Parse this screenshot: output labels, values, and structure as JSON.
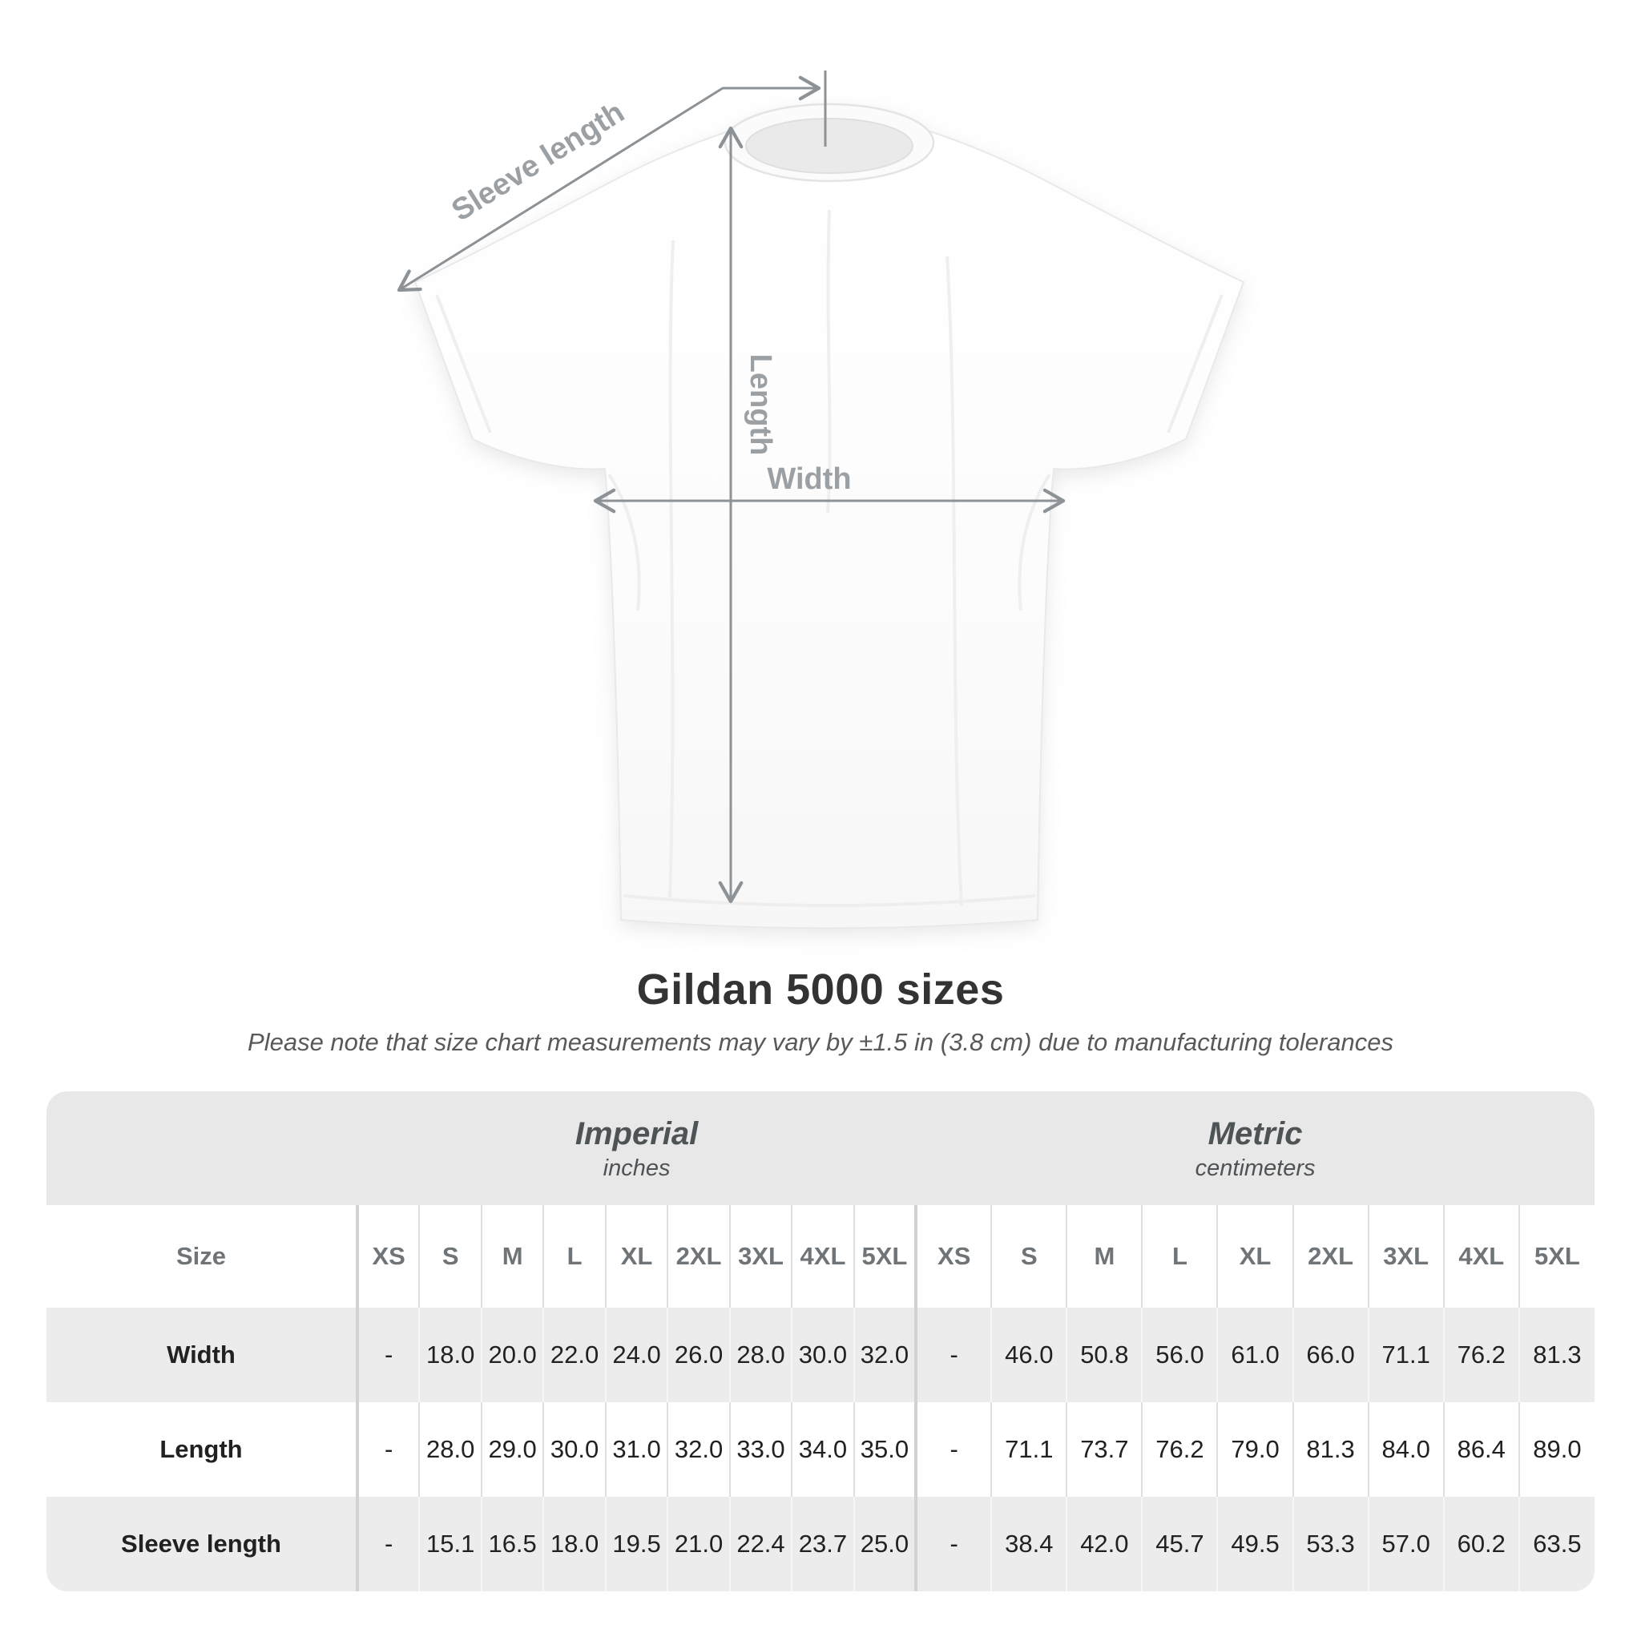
{
  "page": {
    "title": "Gildan 5000 sizes",
    "subtitle": "Please note that size chart measurements may vary by ±1.5 in (3.8 cm) due to manufacturing tolerances"
  },
  "diagram": {
    "labels": {
      "sleeve": "Sleeve length",
      "length": "Length",
      "width": "Width"
    },
    "line_color": "#8d9297",
    "label_color": "#9aa0a4"
  },
  "table": {
    "unit_groups": [
      {
        "name": "Imperial",
        "unit": "inches"
      },
      {
        "name": "Metric",
        "unit": "centimeters"
      }
    ],
    "size_col_header": "Size",
    "sizes": [
      "XS",
      "S",
      "M",
      "L",
      "XL",
      "2XL",
      "3XL",
      "4XL",
      "5XL"
    ],
    "rows": [
      {
        "label": "Width",
        "imperial": [
          "-",
          "18.0",
          "20.0",
          "22.0",
          "24.0",
          "26.0",
          "28.0",
          "30.0",
          "32.0"
        ],
        "metric": [
          "-",
          "46.0",
          "50.8",
          "56.0",
          "61.0",
          "66.0",
          "71.1",
          "76.2",
          "81.3"
        ]
      },
      {
        "label": "Length",
        "imperial": [
          "-",
          "28.0",
          "29.0",
          "30.0",
          "31.0",
          "32.0",
          "33.0",
          "34.0",
          "35.0"
        ],
        "metric": [
          "-",
          "71.1",
          "73.7",
          "76.2",
          "79.0",
          "81.3",
          "84.0",
          "86.4",
          "89.0"
        ]
      },
      {
        "label": "Sleeve length",
        "imperial": [
          "-",
          "15.1",
          "16.5",
          "18.0",
          "19.5",
          "21.0",
          "22.4",
          "23.7",
          "25.0"
        ],
        "metric": [
          "-",
          "38.4",
          "42.0",
          "45.7",
          "49.5",
          "53.3",
          "57.0",
          "60.2",
          "63.5"
        ]
      }
    ],
    "colors": {
      "band": "#e8e8e8",
      "row_shade": "#ececec",
      "divider": "#d2d2d2"
    }
  },
  "chart_data": {
    "type": "table",
    "title": "Gildan 5000 sizes",
    "note": "Please note that size chart measurements may vary by ±1.5 in (3.8 cm) due to manufacturing tolerances",
    "column_groups": [
      "Imperial (inches)",
      "Metric (centimeters)"
    ],
    "columns": [
      "Size",
      "XS",
      "S",
      "M",
      "L",
      "XL",
      "2XL",
      "3XL",
      "4XL",
      "5XL",
      "XS",
      "S",
      "M",
      "L",
      "XL",
      "2XL",
      "3XL",
      "4XL",
      "5XL"
    ],
    "rows": [
      [
        "Width",
        "-",
        "18.0",
        "20.0",
        "22.0",
        "24.0",
        "26.0",
        "28.0",
        "30.0",
        "32.0",
        "-",
        "46.0",
        "50.8",
        "56.0",
        "61.0",
        "66.0",
        "71.1",
        "76.2",
        "81.3"
      ],
      [
        "Length",
        "-",
        "28.0",
        "29.0",
        "30.0",
        "31.0",
        "32.0",
        "33.0",
        "34.0",
        "35.0",
        "-",
        "71.1",
        "73.7",
        "76.2",
        "79.0",
        "81.3",
        "84.0",
        "86.4",
        "89.0"
      ],
      [
        "Sleeve length",
        "-",
        "15.1",
        "16.5",
        "18.0",
        "19.5",
        "21.0",
        "22.4",
        "23.7",
        "25.0",
        "-",
        "38.4",
        "42.0",
        "45.7",
        "49.5",
        "53.3",
        "57.0",
        "60.2",
        "63.5"
      ]
    ]
  }
}
